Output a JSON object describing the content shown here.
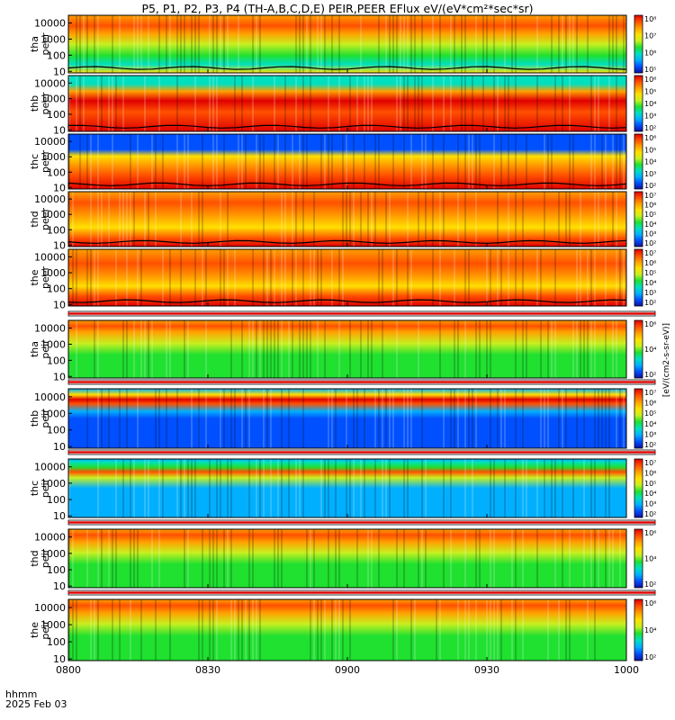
{
  "title": "P5, P1, P2, P3, P4 (TH-A,B,C,D,E) PEIR,PEER EFlux eV/(eV*cm²*sec*sr)",
  "xaxis": {
    "label_line1": "hhmm",
    "label_line2": "2025 Feb 03"
  },
  "colorbar_units": "[eV/(cm2-s-sr-eV)]",
  "chart_data": {
    "type": "heatmap",
    "x_ticks": [
      "0800",
      "0830",
      "0900",
      "0930",
      "1000"
    ],
    "x_range": [
      "08:00",
      "10:00"
    ],
    "y_scale": "log",
    "y_ticks": [
      "10",
      "100",
      "1000",
      "10000"
    ],
    "y_range": [
      8,
      30000
    ],
    "colormap": [
      "#1010a0",
      "#0050ff",
      "#00b0ff",
      "#00e0c0",
      "#20e030",
      "#c8f020",
      "#ffe000",
      "#ffa000",
      "#ff5000",
      "#e00000"
    ],
    "panels": [
      {
        "probe": "tha",
        "species": "peer",
        "cbar_ticks": [
          "10⁵",
          "10⁶",
          "10⁷",
          "10⁸"
        ],
        "spacecraft_potential": true
      },
      {
        "probe": "thb",
        "species": "peer",
        "cbar_ticks": [
          "10²",
          "10³",
          "10⁴",
          "10⁵",
          "10⁶"
        ],
        "spacecraft_potential": true
      },
      {
        "probe": "thc",
        "species": "peer",
        "cbar_ticks": [
          "10²",
          "10³",
          "10⁴",
          "10⁵",
          "10⁶"
        ],
        "spacecraft_potential": true
      },
      {
        "probe": "thd",
        "species": "peer",
        "cbar_ticks": [
          "10²",
          "10³",
          "10⁴",
          "10⁵",
          "10⁶",
          "10⁷"
        ],
        "spacecraft_potential": true
      },
      {
        "probe": "the",
        "species": "peer",
        "cbar_ticks": [
          "10²",
          "10³",
          "10⁴",
          "10⁵",
          "10⁶",
          "10⁷"
        ],
        "spacecraft_potential": true
      },
      {
        "probe": "tha",
        "species": "peir",
        "cbar_ticks": [
          "10²",
          "10⁴",
          "10⁶"
        ],
        "spacecraft_potential": false
      },
      {
        "probe": "thb",
        "species": "peir",
        "cbar_ticks": [
          "10²",
          "10³",
          "10⁴",
          "10⁵",
          "10⁶",
          "10⁷"
        ],
        "spacecraft_potential": false
      },
      {
        "probe": "thc",
        "species": "peir",
        "cbar_ticks": [
          "10²",
          "10³",
          "10⁴",
          "10⁵",
          "10⁶",
          "10⁷"
        ],
        "spacecraft_potential": false
      },
      {
        "probe": "thd",
        "species": "peir",
        "cbar_ticks": [
          "10²",
          "10⁴",
          "10⁶"
        ],
        "spacecraft_potential": false
      },
      {
        "probe": "the",
        "species": "peir",
        "cbar_ticks": [
          "10²",
          "10⁴",
          "10⁶"
        ],
        "spacecraft_potential": false
      }
    ]
  }
}
